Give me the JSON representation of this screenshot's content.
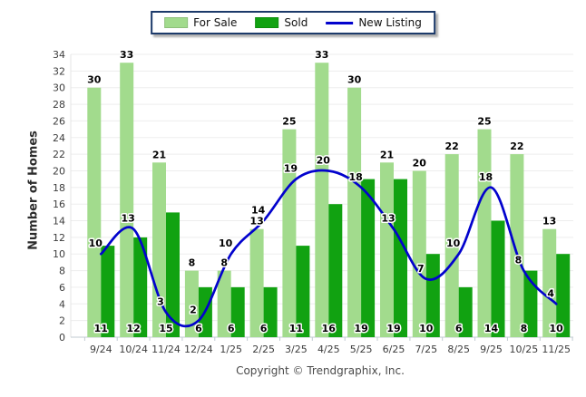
{
  "footer": {
    "copyright": "Copyright © Trendgraphix, Inc."
  },
  "theme": {
    "for_sale_color": "#a2db8d",
    "sold_color": "#11a211",
    "new_listing_color": "#0202cd",
    "grid_color": "#ededed",
    "axis_color": "#c2cbd2",
    "tick_text_color": "#3d3d3d",
    "legend_border_color": "#1c3a6a"
  },
  "chart_data": {
    "type": "bar",
    "title": "",
    "xlabel": "",
    "ylabel": "Number of Homes",
    "ylim": [
      0,
      34
    ],
    "ystep": 2,
    "yticks": [
      0,
      2,
      4,
      6,
      8,
      10,
      12,
      14,
      16,
      18,
      20,
      22,
      24,
      26,
      28,
      30,
      32,
      34
    ],
    "grid": true,
    "legend_position": "top",
    "categories": [
      "9/24",
      "10/24",
      "11/24",
      "12/24",
      "1/25",
      "2/25",
      "3/25",
      "4/25",
      "5/25",
      "6/25",
      "7/25",
      "8/25",
      "9/25",
      "10/25",
      "11/25"
    ],
    "series": [
      {
        "name": "For Sale",
        "type": "bar",
        "color": "#a2db8d",
        "values": [
          30,
          33,
          21,
          8,
          8,
          13,
          25,
          33,
          30,
          21,
          20,
          22,
          25,
          22,
          13
        ]
      },
      {
        "name": "Sold",
        "type": "bar",
        "color": "#11a211",
        "values": [
          11,
          12,
          15,
          6,
          6,
          6,
          11,
          16,
          19,
          19,
          10,
          6,
          14,
          8,
          10
        ]
      },
      {
        "name": "New Listing",
        "type": "line",
        "color": "#0202cd",
        "values": [
          10,
          13,
          3,
          2,
          10,
          14,
          19,
          20,
          18,
          13,
          7,
          10,
          18,
          8,
          4
        ]
      }
    ]
  }
}
